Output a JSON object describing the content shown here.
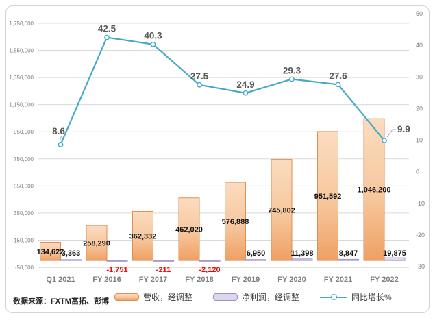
{
  "footer": {
    "source_note": "数据来源：FXTM富拓、彭博"
  },
  "legend": {
    "items": [
      {
        "label": "营收，经调整",
        "kind": "bar-orange"
      },
      {
        "label": "净利润，经调整",
        "kind": "bar-purple"
      },
      {
        "label": "同比增长%",
        "kind": "line-teal"
      }
    ]
  },
  "colors": {
    "revenue_fill_top": "#fbdcbf",
    "revenue_fill_bottom": "#efa063",
    "revenue_border": "#e08e54",
    "net_fill": "#dcd6ee",
    "net_border": "#9f8fc7",
    "growth_line": "#45a9c5",
    "negative_label": "#ff0000",
    "gridline": "#d9d9d9",
    "axis_text": "#808080",
    "category_text": "#7f7f7f",
    "line_label_text": "#595959",
    "bar_label_text": "#111111"
  },
  "chart_data": {
    "type": "combo",
    "title": "",
    "categories": [
      "Q1 2021",
      "FY 2016",
      "FY 2017",
      "FY 2018",
      "FY 2019",
      "FY 2020",
      "FY 2021",
      "FY 2022"
    ],
    "series": [
      {
        "name": "营收，经调整",
        "type": "bar",
        "axis": "left",
        "values": [
          134622,
          258290,
          362332,
          462020,
          576888,
          745802,
          951592,
          1046200
        ],
        "labels": [
          "134,622",
          "258,290",
          "362,332",
          "462,020",
          "576,888",
          "745,802",
          "951,592",
          "1,046,200"
        ]
      },
      {
        "name": "净利润，经调整",
        "type": "bar",
        "axis": "left",
        "values": [
          3363,
          -1751,
          -211,
          -2120,
          6950,
          11398,
          8847,
          19875
        ],
        "labels": [
          "3,363",
          "-1,751",
          "-211",
          "-2,120",
          "6,950",
          "11,398",
          "8,847",
          "19,875"
        ]
      },
      {
        "name": "同比增长%",
        "type": "line",
        "axis": "right",
        "values": [
          8.6,
          42.5,
          40.3,
          27.5,
          24.9,
          29.3,
          27.6,
          9.9
        ],
        "labels": [
          "8.6",
          "42.5",
          "40.3",
          "27.5",
          "24.9",
          "29.3",
          "27.6",
          "9.9"
        ]
      }
    ],
    "left_axis": {
      "min": -50000,
      "max": 1750000,
      "step": 200000,
      "tick_labels": [
        "1,750,000",
        "1,550,000",
        "1,350,000",
        "1,150,000",
        "950,000",
        "750,000",
        "550,000",
        "350,000",
        "150,000",
        "-50,000"
      ]
    },
    "right_axis": {
      "min": -30,
      "max": 50,
      "step": 10,
      "tick_labels": [
        "50",
        "40",
        "30",
        "20",
        "10",
        "0",
        "-10",
        "-20",
        "-30"
      ]
    },
    "grid": true,
    "legend_position": "bottom"
  }
}
